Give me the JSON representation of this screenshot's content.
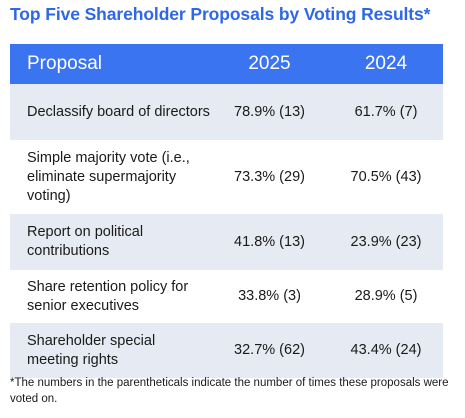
{
  "title": "Top Five Shareholder Proposals by Voting Results*",
  "table": {
    "headers": [
      "Proposal",
      "2025",
      "2024"
    ],
    "rows": [
      {
        "proposal": "Declassify board of directors",
        "y2025": "78.9% (13)",
        "y2024": "61.7% (7)"
      },
      {
        "proposal": "Simple majority vote (i.e., eliminate supermajority voting)",
        "y2025": "73.3% (29)",
        "y2024": "70.5% (43)"
      },
      {
        "proposal": "Report on political contributions",
        "y2025": "41.8% (13)",
        "y2024": "23.9% (23)"
      },
      {
        "proposal": "Share retention policy for senior executives",
        "y2025": "33.8% (3)",
        "y2024": "28.9% (5)"
      },
      {
        "proposal": "Shareholder special meeting rights",
        "y2025": "32.7% (62)",
        "y2024": "43.4% (24)"
      }
    ]
  },
  "footnote": "*The numbers in the parentheticals indicate the number of times these proposals were voted on.",
  "colors": {
    "accent": "#3b74f0",
    "title": "#2f68e6",
    "shaded_row": "#e6eaf2"
  }
}
